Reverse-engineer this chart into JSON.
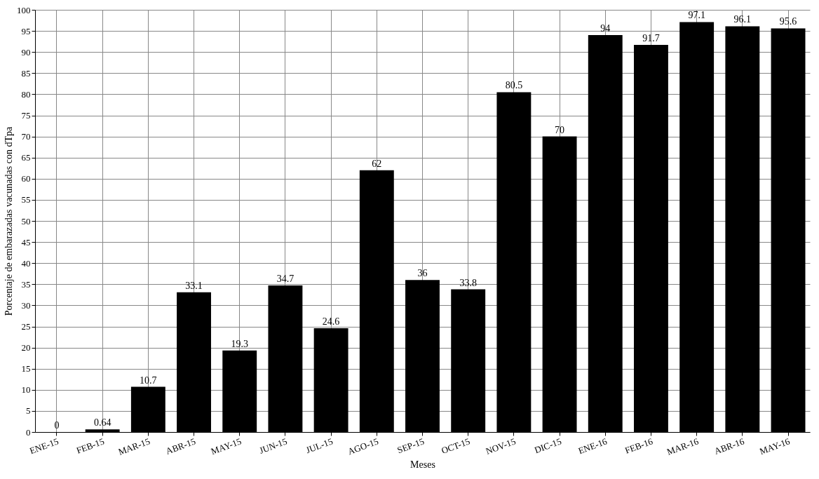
{
  "chart_data": {
    "type": "bar",
    "xlabel": "Meses",
    "ylabel": "Porcentaje de embarazadas vacunadas con dTpa",
    "categories": [
      "ENE-15",
      "FEB-15",
      "MAR-15",
      "ABR-15",
      "MAY-15",
      "JUN-15",
      "JUL-15",
      "AGO-15",
      "SEP-15",
      "OCT-15",
      "NOV-15",
      "DIC-15",
      "ENE-16",
      "FEB-16",
      "MAR-16",
      "ABR-16",
      "MAY-16"
    ],
    "values": [
      0,
      0.64,
      10.7,
      33.1,
      19.3,
      34.7,
      24.6,
      62,
      36,
      33.8,
      80.5,
      70,
      94,
      91.7,
      97.1,
      96.1,
      95.6
    ],
    "color": "#000000",
    "ylim": [
      0,
      100
    ],
    "yticks": [
      0,
      5,
      10,
      15,
      20,
      25,
      30,
      35,
      40,
      45,
      50,
      55,
      60,
      65,
      70,
      75,
      80,
      85,
      90,
      95,
      100
    ],
    "grid": true,
    "data_labels": true
  }
}
